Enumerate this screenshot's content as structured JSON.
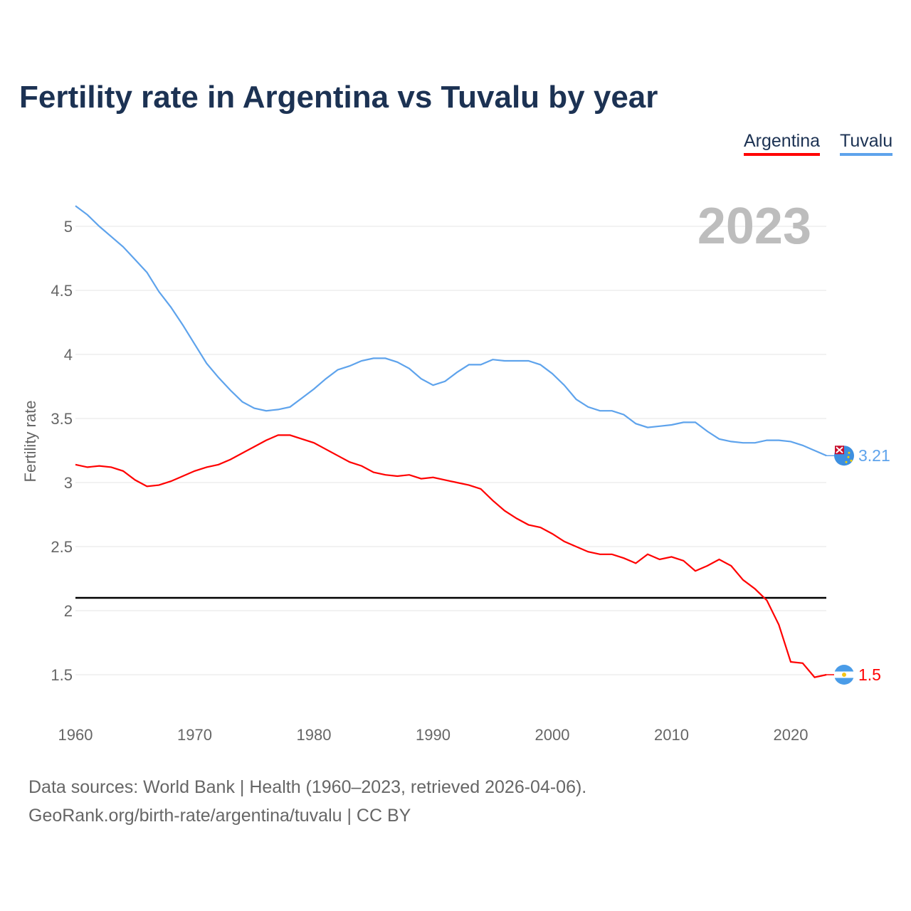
{
  "chart_data": {
    "type": "line",
    "title": "Fertility rate in Argentina vs Tuvalu by year",
    "xlabel": "",
    "ylabel": "Fertility rate",
    "xlim": [
      1960,
      2023
    ],
    "ylim": [
      1.2,
      5.2
    ],
    "xticks": [
      1960,
      1970,
      1980,
      1990,
      2000,
      2010,
      2020
    ],
    "yticks": [
      1.5,
      2,
      2.5,
      3,
      3.5,
      4,
      4.5,
      5
    ],
    "year_label": "2023",
    "reference_line": 2.1,
    "legend_position": "top-right",
    "series": [
      {
        "name": "Argentina",
        "color": "#ff0000",
        "end_label": "1.5",
        "flag": "argentina-flag",
        "start_year": 1960,
        "values": [
          3.14,
          3.12,
          3.13,
          3.12,
          3.09,
          3.02,
          2.97,
          2.98,
          3.01,
          3.05,
          3.09,
          3.12,
          3.14,
          3.18,
          3.23,
          3.28,
          3.33,
          3.37,
          3.37,
          3.34,
          3.31,
          3.26,
          3.21,
          3.16,
          3.13,
          3.08,
          3.06,
          3.05,
          3.06,
          3.03,
          3.04,
          3.02,
          3.0,
          2.98,
          2.95,
          2.86,
          2.78,
          2.72,
          2.67,
          2.65,
          2.6,
          2.54,
          2.5,
          2.46,
          2.44,
          2.44,
          2.41,
          2.37,
          2.44,
          2.4,
          2.42,
          2.39,
          2.31,
          2.35,
          2.4,
          2.35,
          2.24,
          2.17,
          2.08,
          1.89,
          1.6,
          1.59,
          1.48,
          1.5
        ]
      },
      {
        "name": "Tuvalu",
        "color": "#5ea3ec",
        "end_label": "3.21",
        "flag": "tuvalu-flag",
        "start_year": 1960,
        "values": [
          5.16,
          5.09,
          5.0,
          4.92,
          4.84,
          4.74,
          4.64,
          4.49,
          4.37,
          4.23,
          4.08,
          3.93,
          3.82,
          3.72,
          3.63,
          3.58,
          3.56,
          3.57,
          3.59,
          3.66,
          3.73,
          3.81,
          3.88,
          3.91,
          3.95,
          3.97,
          3.97,
          3.94,
          3.89,
          3.81,
          3.76,
          3.79,
          3.86,
          3.92,
          3.92,
          3.96,
          3.95,
          3.95,
          3.95,
          3.92,
          3.85,
          3.76,
          3.65,
          3.59,
          3.56,
          3.56,
          3.53,
          3.46,
          3.43,
          3.44,
          3.45,
          3.47,
          3.47,
          3.4,
          3.34,
          3.32,
          3.31,
          3.31,
          3.33,
          3.33,
          3.32,
          3.29,
          3.25,
          3.21
        ]
      }
    ]
  },
  "footer": {
    "line1": "Data sources: World Bank | Health (1960–2023, retrieved 2026-04-06).",
    "line2": "GeoRank.org/birth-rate/argentina/tuvalu | CC BY"
  }
}
